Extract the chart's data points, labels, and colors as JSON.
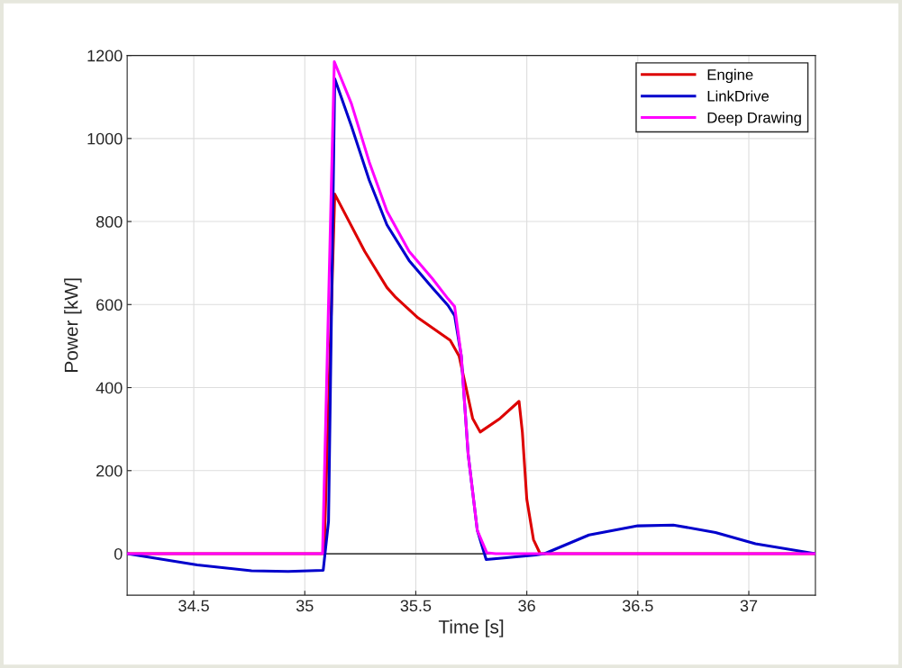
{
  "chart_data": {
    "type": "line",
    "xlabel": "Time [s]",
    "ylabel": "Power [kW]",
    "xlim": [
      34.2,
      37.3
    ],
    "xticks": [
      34.5,
      35,
      35.5,
      36,
      36.5,
      37
    ],
    "ylim": [
      -100,
      1200
    ],
    "yticks": [
      0,
      200,
      400,
      600,
      800,
      1000,
      1200
    ],
    "grid": true,
    "legend": "top right",
    "line_style": "solid",
    "marker": "none",
    "ref_lines": [
      {
        "axis": "y",
        "value": 0,
        "color": "#000000"
      }
    ],
    "series": [
      {
        "name": "Engine",
        "color": "#dd0000",
        "x": [
          34.2,
          35.087,
          35.135,
          35.27,
          35.37,
          35.41,
          35.51,
          35.655,
          35.695,
          35.726,
          35.756,
          35.79,
          35.88,
          35.965,
          35.98,
          36.0,
          36.03,
          36.06,
          37.3
        ],
        "values": [
          0,
          0,
          866,
          728,
          641,
          617,
          568,
          514,
          476,
          401,
          326,
          293,
          326,
          367,
          293,
          131,
          34,
          0,
          0
        ]
      },
      {
        "name": "LinkDrive",
        "color": "#0000cc",
        "x": [
          34.2,
          34.515,
          34.76,
          34.925,
          35.083,
          35.107,
          35.135,
          35.21,
          35.29,
          35.37,
          35.47,
          35.574,
          35.645,
          35.675,
          35.705,
          35.736,
          35.777,
          35.817,
          35.92,
          36.04,
          36.08,
          36.28,
          36.5,
          36.66,
          36.85,
          37.03,
          37.3
        ],
        "values": [
          0,
          -27,
          -41,
          -43,
          -40,
          78,
          1144,
          1030,
          900,
          792,
          706,
          641,
          598,
          573,
          476,
          239,
          56,
          -14,
          -9,
          -3,
          0,
          45,
          67,
          69,
          51,
          24,
          0
        ]
      },
      {
        "name": "Deep Drawing",
        "color": "#ff00ff",
        "x": [
          34.2,
          35.08,
          35.133,
          35.21,
          35.29,
          35.37,
          35.47,
          35.574,
          35.645,
          35.675,
          35.705,
          35.736,
          35.777,
          35.82,
          35.86,
          37.3
        ],
        "values": [
          0,
          0,
          1185,
          1084,
          944,
          825,
          728,
          663,
          614,
          595,
          476,
          239,
          56,
          2,
          0,
          0
        ]
      }
    ]
  }
}
